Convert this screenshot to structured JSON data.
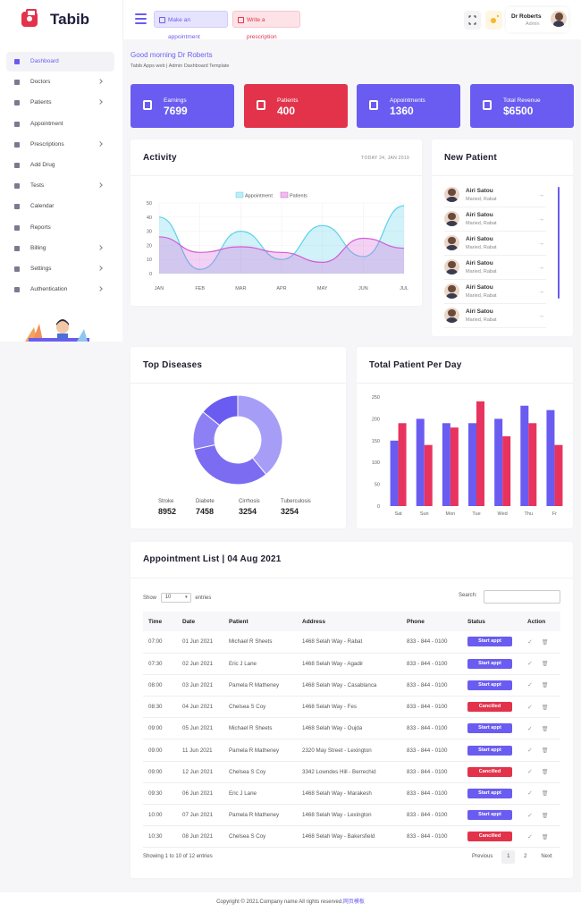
{
  "header": {
    "app_name": "Tabib",
    "make_appointment": "Make an appointment",
    "write_prescription": "Write a prescription",
    "user_name": "Dr Roberts",
    "user_role": "Admin"
  },
  "sidebar": {
    "items": [
      {
        "label": "Dashboard",
        "icon": "grid-icon",
        "chevron": false,
        "active": true
      },
      {
        "label": "Doctors",
        "icon": "doctor-icon",
        "chevron": true
      },
      {
        "label": "Patients",
        "icon": "users-icon",
        "chevron": true
      },
      {
        "label": "Appointment",
        "icon": "calendar-check-icon",
        "chevron": false
      },
      {
        "label": "Prescriptions",
        "icon": "prescription-icon",
        "chevron": true
      },
      {
        "label": "Add Drug",
        "icon": "pill-icon",
        "chevron": false
      },
      {
        "label": "Tests",
        "icon": "heartbeat-icon",
        "chevron": true
      },
      {
        "label": "Calendar",
        "icon": "calendar-icon",
        "chevron": false
      },
      {
        "label": "Reports",
        "icon": "chart-icon",
        "chevron": false
      },
      {
        "label": "Billing",
        "icon": "billing-icon",
        "chevron": true
      },
      {
        "label": "Settings",
        "icon": "gear-icon",
        "chevron": true
      },
      {
        "label": "Authentication",
        "icon": "tag-icon",
        "chevron": true
      }
    ]
  },
  "greeting": {
    "title": "Good morning Dr Roberts",
    "subtitle": "Tabib Apps web | Admin Dashboard Template"
  },
  "stats": [
    {
      "label": "Earnings",
      "value": "7699",
      "color": "#6a5cf0",
      "icon": "wallet-icon"
    },
    {
      "label": "Patients",
      "value": "400",
      "color": "#e2334b",
      "icon": "patient-icon"
    },
    {
      "label": "Appointments",
      "value": "1360",
      "color": "#6a5cf0",
      "icon": "user-plus-icon"
    },
    {
      "label": "Total Revenue",
      "value": "$6500",
      "color": "#6a5cf0",
      "icon": "database-icon"
    }
  ],
  "activity": {
    "title": "Activity",
    "date": "TODAY 24, JAN 2019"
  },
  "new_patient": {
    "title": "New Patient",
    "patients": [
      {
        "name": "Airi Satou",
        "details": "Maried, Rabat"
      },
      {
        "name": "Airi Satou",
        "details": "Maried, Rabat"
      },
      {
        "name": "Airi Satou",
        "details": "Maried, Rabat"
      },
      {
        "name": "Airi Satou",
        "details": "Maried, Rabat"
      },
      {
        "name": "Airi Satou",
        "details": "Maried, Rabat"
      },
      {
        "name": "Airi Satou",
        "details": "Maried, Rabat"
      }
    ]
  },
  "top_diseases": {
    "title": "Top Diseases",
    "items": [
      {
        "label": "Stroke",
        "value": "8952"
      },
      {
        "label": "Diabete",
        "value": "7458"
      },
      {
        "label": "Cirrhosis",
        "value": "3254"
      },
      {
        "label": "Tuberculosis",
        "value": "3254"
      }
    ]
  },
  "patients_per_day": {
    "title": "Total Patient Per Day"
  },
  "chart_data": [
    {
      "type": "area",
      "categories": [
        "JAN",
        "FEB",
        "MAR",
        "APR",
        "MAY",
        "JUN",
        "JUL"
      ],
      "ylim": [
        0,
        50
      ],
      "yticks": [
        0,
        10,
        20,
        30,
        40,
        50
      ],
      "grid": true,
      "legend": "top-center",
      "series": [
        {
          "name": "Appointment",
          "color": "#5ad2e8",
          "values": [
            40,
            3,
            30,
            10,
            34,
            12,
            48
          ]
        },
        {
          "name": "Patients",
          "color": "#d45ad6",
          "values": [
            26,
            15,
            19,
            15,
            8,
            25,
            18
          ]
        }
      ]
    },
    {
      "type": "pie",
      "donut": true,
      "values": [
        8952,
        7458,
        3254,
        3254
      ],
      "labels": [
        "Stroke",
        "Diabete",
        "Cirrhosis",
        "Tuberculosis"
      ],
      "colors": [
        "#a69df7",
        "#7b6cf2",
        "#8c80f4",
        "#6a5cf0"
      ]
    },
    {
      "type": "bar",
      "categories": [
        "Sat",
        "Sun",
        "Mon",
        "Tue",
        "Wed",
        "Thu",
        "Fr"
      ],
      "ylim": [
        0,
        250
      ],
      "yticks": [
        0,
        50,
        100,
        150,
        200,
        250
      ],
      "series": [
        {
          "color": "#6a5cf0",
          "values": [
            150,
            200,
            190,
            190,
            200,
            230,
            220
          ]
        },
        {
          "color": "#e8335f",
          "values": [
            190,
            140,
            180,
            240,
            160,
            190,
            140
          ]
        }
      ]
    }
  ],
  "appointments": {
    "title": "Appointment List | 04 Aug 2021",
    "show_label": "Show",
    "entries_value": "10",
    "entries_label": "entries",
    "search_label": "Search:",
    "columns": [
      "Time",
      "Date",
      "Patient",
      "Address",
      "Phone",
      "Status",
      "Action"
    ],
    "rows": [
      {
        "time": "07:00",
        "date": "01 Jun 2021",
        "patient": "Michael R Sheets",
        "address": "1468 Selah Way - Rabat",
        "phone": "833 - 844 - 0100",
        "status": "Start appt",
        "status_color": "#6a5cf0"
      },
      {
        "time": "07:30",
        "date": "02 Jun 2021",
        "patient": "Eric J Lane",
        "address": "1468 Selah Way - Agadir",
        "phone": "833 - 844 - 0100",
        "status": "Start appt",
        "status_color": "#6a5cf0"
      },
      {
        "time": "08:00",
        "date": "03 Jun 2021",
        "patient": "Pamela R Matheney",
        "address": "1468 Selah Way - Casablanca",
        "phone": "833 - 844 - 0100",
        "status": "Start appt",
        "status_color": "#6a5cf0"
      },
      {
        "time": "08:30",
        "date": "04 Jun 2021",
        "patient": "Chelsea S Coy",
        "address": "1468 Selah Way - Fes",
        "phone": "833 - 844 - 0100",
        "status": "Cancilled",
        "status_color": "#e2334b"
      },
      {
        "time": "09:00",
        "date": "05 Jun 2021",
        "patient": "Michael R Sheets",
        "address": "1468 Selah Way - Oujda",
        "phone": "833 - 844 - 0100",
        "status": "Start appt",
        "status_color": "#6a5cf0"
      },
      {
        "time": "09:00",
        "date": "11 Jun 2021",
        "patient": "Pamela R Matheney",
        "address": "2320 May Street - Lexington",
        "phone": "833 - 844 - 0100",
        "status": "Start appt",
        "status_color": "#6a5cf0"
      },
      {
        "time": "09:00",
        "date": "12 Jun 2021",
        "patient": "Chelsea S Coy",
        "address": "3342 Lowndes Hill - Berrechid",
        "phone": "833 - 844 - 0100",
        "status": "Cancilled",
        "status_color": "#e2334b"
      },
      {
        "time": "09:30",
        "date": "06 Jun 2021",
        "patient": "Eric J Lane",
        "address": "1468 Selah Way - Marakesh",
        "phone": "833 - 844 - 0100",
        "status": "Start appt",
        "status_color": "#6a5cf0"
      },
      {
        "time": "10:00",
        "date": "07 Jun 2021",
        "patient": "Pamela R Matheney",
        "address": "1468 Selah Way - Lexington",
        "phone": "833 - 844 - 0100",
        "status": "Start appt",
        "status_color": "#6a5cf0"
      },
      {
        "time": "10:30",
        "date": "08 Jun 2021",
        "patient": "Chelsea S Coy",
        "address": "1468 Selah Way - Bakersfield",
        "phone": "833 - 844 - 0100",
        "status": "Cancilled",
        "status_color": "#e2334b"
      }
    ],
    "info": "Showing 1 to 10 of 12 entries",
    "pagination": {
      "previous": "Previous",
      "pages": [
        "1",
        "2"
      ],
      "next": "Next"
    }
  },
  "footer": {
    "text": "Copyright © 2021.Company name All rights reserved.",
    "link": "网页模板"
  }
}
